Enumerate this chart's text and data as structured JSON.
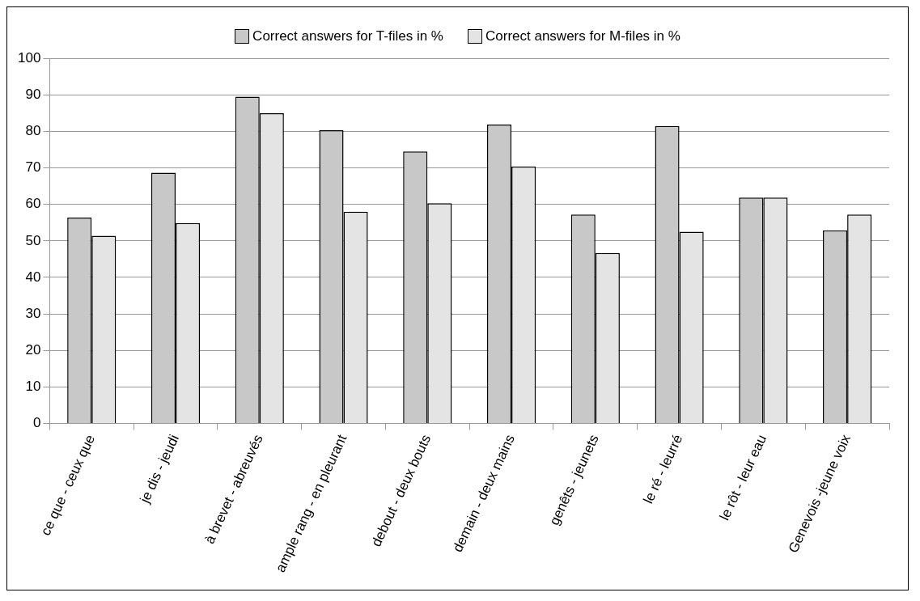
{
  "chart_data": {
    "type": "bar",
    "categories": [
      "ce que - ceux que",
      "je dis - jeudi",
      "à brevet - abreuvés",
      "ample rang - en pleurant",
      "debout - deux bouts",
      "demain - deux mains",
      "genêts - jeunets",
      "le ré - leurré",
      "le rôt - leur eau",
      "Genevois -jeune voix"
    ],
    "series": [
      {
        "name": "Correct answers for T-files in %",
        "color": "#c8c8c8",
        "values": [
          56.4,
          68.7,
          89.5,
          80.3,
          74.5,
          81.9,
          57.2,
          81.5,
          61.9,
          52.9
        ]
      },
      {
        "name": "Correct answers for M-files in %",
        "color": "#e4e4e4",
        "values": [
          51.4,
          54.9,
          85.0,
          58.0,
          60.3,
          70.4,
          46.7,
          52.5,
          61.9,
          57.2
        ]
      }
    ],
    "ylim": [
      0,
      100
    ],
    "yticks": [
      0,
      10,
      20,
      30,
      40,
      50,
      60,
      70,
      80,
      90,
      100
    ],
    "grid": "y",
    "legend": "top"
  }
}
